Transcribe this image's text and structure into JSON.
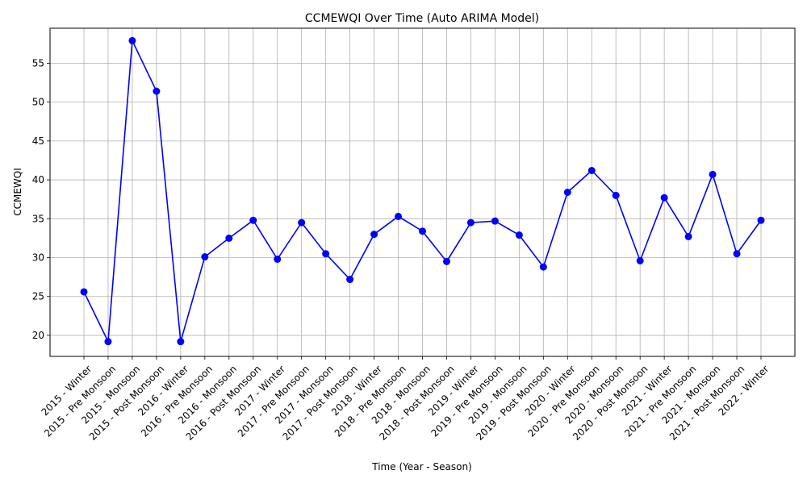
{
  "chart_data": {
    "type": "line",
    "title": "CCMEWQI Over Time (Auto ARIMA Model)",
    "xlabel": "Time (Year - Season)",
    "ylabel": "CCMEWQI",
    "ylim": [
      17.3,
      59.5
    ],
    "yticks": [
      20,
      25,
      30,
      35,
      40,
      45,
      50,
      55
    ],
    "grid": true,
    "line_color": "#0000ff",
    "categories": [
      "2015 - Winter",
      "2015 - Pre Monsoon",
      "2015 - Monsoon",
      "2015 - Post Monsoon",
      "2016 - Winter",
      "2016 - Pre Monsoon",
      "2016 - Monsoon",
      "2016 - Post Monsoon",
      "2017 - Winter",
      "2017 - Pre Monsoon",
      "2017 - Monsoon",
      "2017 - Post Monsoon",
      "2018 - Winter",
      "2018 - Pre Monsoon",
      "2018 - Monsoon",
      "2018 - Post Monsoon",
      "2019 - Winter",
      "2019 - Pre Monsoon",
      "2019 - Monsoon",
      "2019 - Post Monsoon",
      "2020 - Winter",
      "2020 - Pre Monsoon",
      "2020 - Monsoon",
      "2020 - Post Monsoon",
      "2021 - Winter",
      "2021 - Pre Monsoon",
      "2021 - Monsoon",
      "2021 - Post Monsoon",
      "2022 - Winter"
    ],
    "values": [
      25.6,
      19.2,
      57.9,
      51.4,
      19.2,
      30.1,
      32.5,
      34.8,
      29.8,
      34.5,
      30.5,
      27.2,
      33.0,
      35.3,
      33.4,
      29.5,
      34.5,
      34.7,
      32.9,
      28.8,
      38.4,
      41.2,
      38.0,
      29.6,
      37.7,
      32.7,
      40.7,
      30.5,
      34.8
    ]
  }
}
